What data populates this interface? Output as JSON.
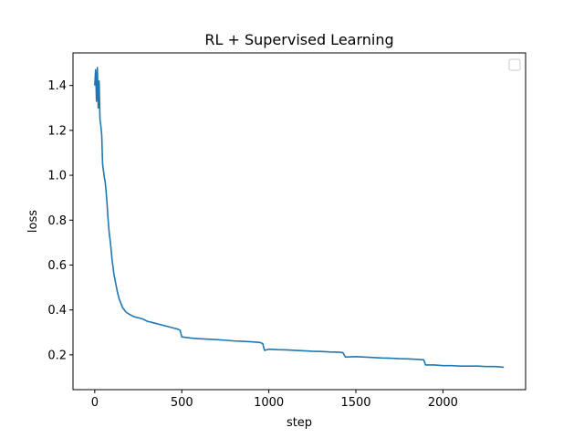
{
  "chart_data": {
    "type": "line",
    "title": "RL + Supervised Learning",
    "xlabel": "step",
    "ylabel": "loss",
    "xlim": [
      -125,
      2475
    ],
    "ylim": [
      0.045,
      1.545
    ],
    "x_ticks": [
      0,
      500,
      1000,
      1500,
      2000
    ],
    "x_tick_labels": [
      "0",
      "500",
      "1000",
      "1500",
      "2000"
    ],
    "y_ticks": [
      0.2,
      0.4,
      0.6,
      0.8,
      1.0,
      1.2,
      1.4
    ],
    "y_tick_labels": [
      "0.2",
      "0.4",
      "0.6",
      "0.8",
      "1.0",
      "1.2",
      "1.4"
    ],
    "grid": false,
    "legend": {
      "placement": "top-right",
      "entries": []
    },
    "series": [
      {
        "color": "#1f77b4",
        "points": [
          [
            0,
            1.4
          ],
          [
            5,
            1.47
          ],
          [
            10,
            1.33
          ],
          [
            15,
            1.48
          ],
          [
            20,
            1.3
          ],
          [
            25,
            1.42
          ],
          [
            30,
            1.25
          ],
          [
            35,
            1.22
          ],
          [
            40,
            1.18
          ],
          [
            45,
            1.05
          ],
          [
            50,
            1.02
          ],
          [
            55,
            0.99
          ],
          [
            60,
            0.97
          ],
          [
            65,
            0.93
          ],
          [
            70,
            0.88
          ],
          [
            75,
            0.82
          ],
          [
            80,
            0.77
          ],
          [
            85,
            0.73
          ],
          [
            90,
            0.7
          ],
          [
            95,
            0.66
          ],
          [
            100,
            0.62
          ],
          [
            110,
            0.56
          ],
          [
            120,
            0.52
          ],
          [
            130,
            0.48
          ],
          [
            140,
            0.45
          ],
          [
            150,
            0.43
          ],
          [
            160,
            0.41
          ],
          [
            170,
            0.4
          ],
          [
            180,
            0.39
          ],
          [
            200,
            0.38
          ],
          [
            225,
            0.37
          ],
          [
            250,
            0.365
          ],
          [
            275,
            0.36
          ],
          [
            300,
            0.35
          ],
          [
            325,
            0.345
          ],
          [
            350,
            0.34
          ],
          [
            375,
            0.335
          ],
          [
            400,
            0.33
          ],
          [
            425,
            0.325
          ],
          [
            450,
            0.32
          ],
          [
            475,
            0.315
          ],
          [
            490,
            0.31
          ],
          [
            500,
            0.28
          ],
          [
            550,
            0.275
          ],
          [
            600,
            0.272
          ],
          [
            650,
            0.27
          ],
          [
            700,
            0.268
          ],
          [
            750,
            0.265
          ],
          [
            800,
            0.262
          ],
          [
            850,
            0.26
          ],
          [
            900,
            0.258
          ],
          [
            950,
            0.255
          ],
          [
            965,
            0.25
          ],
          [
            975,
            0.22
          ],
          [
            1000,
            0.225
          ],
          [
            1050,
            0.223
          ],
          [
            1100,
            0.222
          ],
          [
            1150,
            0.22
          ],
          [
            1200,
            0.218
          ],
          [
            1250,
            0.216
          ],
          [
            1300,
            0.215
          ],
          [
            1350,
            0.213
          ],
          [
            1400,
            0.212
          ],
          [
            1425,
            0.21
          ],
          [
            1440,
            0.19
          ],
          [
            1500,
            0.192
          ],
          [
            1550,
            0.19
          ],
          [
            1600,
            0.188
          ],
          [
            1650,
            0.186
          ],
          [
            1700,
            0.185
          ],
          [
            1750,
            0.183
          ],
          [
            1800,
            0.182
          ],
          [
            1850,
            0.18
          ],
          [
            1890,
            0.178
          ],
          [
            1900,
            0.155
          ],
          [
            1950,
            0.155
          ],
          [
            2000,
            0.152
          ],
          [
            2050,
            0.152
          ],
          [
            2100,
            0.15
          ],
          [
            2150,
            0.15
          ],
          [
            2200,
            0.15
          ],
          [
            2250,
            0.148
          ],
          [
            2300,
            0.148
          ],
          [
            2350,
            0.145
          ]
        ]
      }
    ]
  }
}
